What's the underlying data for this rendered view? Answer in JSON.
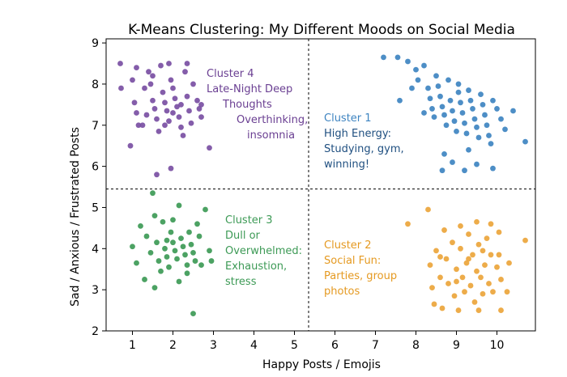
{
  "chart_data": {
    "type": "scatter",
    "title": "K-Means Clustering: My Different Moods on Social Media",
    "xlabel": "Happy Posts / Emojis",
    "ylabel": "Sad / Anxious / Frustrated Posts",
    "xlim": [
      0.35,
      10.95
    ],
    "ylim": [
      2,
      9.1
    ],
    "xticks": [
      "1",
      "2",
      "3",
      "4",
      "5",
      "6",
      "7",
      "8",
      "9",
      "10"
    ],
    "yticks": [
      "2",
      "3",
      "4",
      "5",
      "6",
      "7",
      "8",
      "9"
    ],
    "grid": false,
    "divider_x": 5.35,
    "divider_y": 5.45,
    "series": [
      {
        "color": "#7a4fa3",
        "points": [
          [
            0.7,
            8.5
          ],
          [
            0.72,
            7.9
          ],
          [
            1.0,
            8.1
          ],
          [
            1.05,
            7.55
          ],
          [
            1.1,
            7.3
          ],
          [
            1.15,
            7.0
          ],
          [
            1.3,
            7.9
          ],
          [
            1.4,
            8.3
          ],
          [
            1.45,
            8.0
          ],
          [
            1.5,
            7.6
          ],
          [
            1.55,
            7.4
          ],
          [
            1.6,
            7.15
          ],
          [
            1.65,
            6.85
          ],
          [
            1.7,
            8.45
          ],
          [
            1.75,
            7.8
          ],
          [
            1.8,
            7.55
          ],
          [
            1.85,
            7.35
          ],
          [
            1.9,
            7.1
          ],
          [
            1.95,
            8.1
          ],
          [
            2.0,
            7.9
          ],
          [
            2.05,
            7.65
          ],
          [
            2.1,
            7.45
          ],
          [
            2.15,
            7.2
          ],
          [
            2.2,
            6.95
          ],
          [
            2.25,
            6.75
          ],
          [
            2.3,
            8.3
          ],
          [
            2.35,
            7.7
          ],
          [
            2.4,
            7.35
          ],
          [
            2.45,
            7.05
          ],
          [
            2.5,
            8.0
          ],
          [
            2.6,
            7.6
          ],
          [
            2.65,
            7.4
          ],
          [
            2.7,
            7.2
          ],
          [
            2.9,
            6.45
          ],
          [
            0.95,
            6.5
          ],
          [
            1.1,
            8.4
          ],
          [
            1.25,
            7.0
          ],
          [
            1.6,
            5.8
          ],
          [
            1.95,
            5.95
          ],
          [
            2.7,
            7.5
          ],
          [
            2.2,
            7.5
          ],
          [
            1.8,
            7.0
          ],
          [
            1.5,
            8.2
          ],
          [
            2.0,
            7.3
          ],
          [
            2.35,
            8.5
          ],
          [
            1.35,
            7.25
          ],
          [
            1.9,
            8.5
          ]
        ],
        "labels": [
          "Cluster 4",
          "Late-Night Deep",
          "Thoughts",
          "Overthinking,",
          "insomnia"
        ]
      },
      {
        "color": "#3e84c1",
        "points": [
          [
            7.2,
            8.65
          ],
          [
            7.55,
            8.65
          ],
          [
            7.8,
            8.55
          ],
          [
            8.0,
            8.35
          ],
          [
            8.05,
            8.1
          ],
          [
            8.2,
            8.45
          ],
          [
            8.3,
            7.9
          ],
          [
            8.35,
            7.65
          ],
          [
            8.4,
            7.4
          ],
          [
            8.45,
            7.2
          ],
          [
            8.5,
            8.2
          ],
          [
            8.55,
            7.95
          ],
          [
            8.6,
            7.7
          ],
          [
            8.65,
            7.45
          ],
          [
            8.7,
            7.25
          ],
          [
            8.75,
            7.0
          ],
          [
            8.8,
            8.1
          ],
          [
            8.85,
            7.6
          ],
          [
            8.9,
            7.35
          ],
          [
            8.95,
            7.1
          ],
          [
            9.0,
            6.85
          ],
          [
            9.05,
            7.8
          ],
          [
            9.1,
            7.55
          ],
          [
            9.15,
            7.3
          ],
          [
            9.2,
            7.05
          ],
          [
            9.25,
            6.8
          ],
          [
            9.3,
            7.85
          ],
          [
            9.35,
            7.6
          ],
          [
            9.4,
            7.4
          ],
          [
            9.45,
            7.15
          ],
          [
            9.5,
            6.95
          ],
          [
            9.55,
            6.7
          ],
          [
            9.6,
            7.75
          ],
          [
            9.65,
            7.5
          ],
          [
            9.7,
            7.25
          ],
          [
            9.75,
            7.0
          ],
          [
            9.8,
            6.75
          ],
          [
            9.85,
            6.55
          ],
          [
            9.9,
            7.6
          ],
          [
            10.0,
            7.4
          ],
          [
            10.1,
            7.15
          ],
          [
            10.2,
            6.9
          ],
          [
            10.4,
            7.35
          ],
          [
            10.7,
            6.6
          ],
          [
            8.7,
            6.3
          ],
          [
            8.9,
            6.1
          ],
          [
            9.2,
            5.9
          ],
          [
            9.5,
            6.05
          ],
          [
            9.9,
            5.95
          ],
          [
            8.65,
            5.9
          ],
          [
            9.3,
            6.4
          ],
          [
            7.6,
            7.6
          ],
          [
            7.9,
            7.9
          ],
          [
            9.05,
            8.0
          ],
          [
            8.2,
            7.3
          ]
        ],
        "labels": [
          "Cluster 1",
          "High Energy:",
          "Studying, gym,",
          "winning!"
        ]
      },
      {
        "color": "#3d9a56",
        "points": [
          [
            1.0,
            4.05
          ],
          [
            1.1,
            3.65
          ],
          [
            1.2,
            4.55
          ],
          [
            1.3,
            3.25
          ],
          [
            1.35,
            4.3
          ],
          [
            1.45,
            3.9
          ],
          [
            1.5,
            5.35
          ],
          [
            1.55,
            4.8
          ],
          [
            1.6,
            4.15
          ],
          [
            1.65,
            3.7
          ],
          [
            1.7,
            3.45
          ],
          [
            1.75,
            4.65
          ],
          [
            1.8,
            4.0
          ],
          [
            1.85,
            3.8
          ],
          [
            1.9,
            3.55
          ],
          [
            1.95,
            4.4
          ],
          [
            2.0,
            4.15
          ],
          [
            2.05,
            3.95
          ],
          [
            2.1,
            3.75
          ],
          [
            2.15,
            5.05
          ],
          [
            2.2,
            4.25
          ],
          [
            2.25,
            4.05
          ],
          [
            2.3,
            3.85
          ],
          [
            2.35,
            3.6
          ],
          [
            2.4,
            4.4
          ],
          [
            2.45,
            4.1
          ],
          [
            2.5,
            3.9
          ],
          [
            2.55,
            3.7
          ],
          [
            2.6,
            4.6
          ],
          [
            2.7,
            3.6
          ],
          [
            2.8,
            4.95
          ],
          [
            2.9,
            3.95
          ],
          [
            2.95,
            3.7
          ],
          [
            2.5,
            2.42
          ],
          [
            2.15,
            3.2
          ],
          [
            1.55,
            3.05
          ],
          [
            2.35,
            3.4
          ],
          [
            1.85,
            4.2
          ],
          [
            2.0,
            4.7
          ],
          [
            2.65,
            4.3
          ]
        ],
        "labels": [
          "Cluster 3",
          "Dull or",
          "Overwhelmed:",
          "Exhaustion,",
          "stress"
        ]
      },
      {
        "color": "#eba53b",
        "points": [
          [
            7.8,
            4.6
          ],
          [
            8.3,
            4.95
          ],
          [
            8.35,
            3.6
          ],
          [
            8.4,
            3.05
          ],
          [
            8.45,
            2.65
          ],
          [
            8.5,
            3.95
          ],
          [
            8.6,
            3.3
          ],
          [
            8.65,
            2.55
          ],
          [
            8.75,
            3.75
          ],
          [
            8.8,
            3.15
          ],
          [
            8.9,
            4.15
          ],
          [
            8.95,
            2.85
          ],
          [
            9.0,
            3.5
          ],
          [
            9.05,
            2.5
          ],
          [
            9.1,
            4.0
          ],
          [
            9.15,
            3.3
          ],
          [
            9.2,
            2.95
          ],
          [
            9.25,
            3.65
          ],
          [
            9.3,
            4.35
          ],
          [
            9.35,
            3.1
          ],
          [
            9.4,
            3.85
          ],
          [
            9.45,
            2.7
          ],
          [
            9.5,
            3.45
          ],
          [
            9.55,
            4.1
          ],
          [
            9.6,
            3.3
          ],
          [
            9.65,
            2.9
          ],
          [
            9.7,
            3.6
          ],
          [
            9.75,
            4.25
          ],
          [
            9.8,
            3.15
          ],
          [
            9.85,
            3.85
          ],
          [
            9.9,
            2.95
          ],
          [
            10.0,
            3.55
          ],
          [
            10.05,
            4.4
          ],
          [
            10.1,
            3.25
          ],
          [
            10.25,
            2.95
          ],
          [
            10.7,
            4.2
          ],
          [
            10.3,
            3.65
          ],
          [
            10.1,
            2.5
          ],
          [
            9.55,
            2.5
          ],
          [
            9.1,
            4.55
          ],
          [
            9.5,
            4.65
          ],
          [
            9.85,
            4.6
          ],
          [
            10.05,
            3.85
          ],
          [
            8.7,
            4.45
          ],
          [
            9.0,
            3.2
          ],
          [
            9.3,
            3.75
          ],
          [
            9.65,
            3.95
          ],
          [
            8.6,
            3.8
          ]
        ],
        "labels": [
          "Cluster 2",
          "Social Fun:",
          "Parties, group",
          "photos"
        ]
      }
    ]
  }
}
